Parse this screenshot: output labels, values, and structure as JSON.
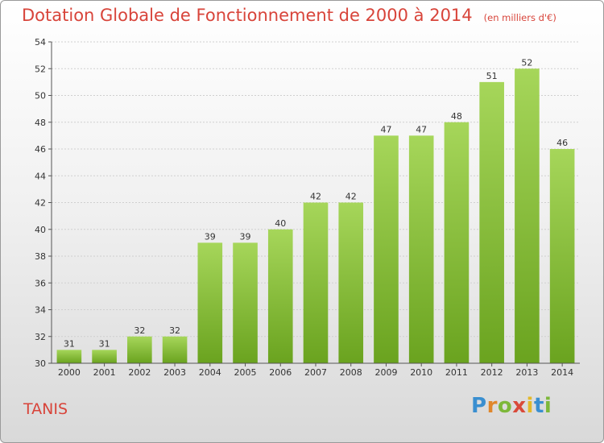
{
  "title": "Dotation Globale de Fonctionnement de 2000 à 2014",
  "unit_note": "(en milliers d'€)",
  "commune": "TANIS",
  "logo": {
    "letters": [
      "P",
      "r",
      "o",
      "x",
      "i",
      "t",
      "i"
    ],
    "colors": [
      "#3a8fd0",
      "#e0872b",
      "#7db83a",
      "#d94a3a",
      "#e3b92a",
      "#3a8fd0",
      "#7db83a"
    ]
  },
  "colors": {
    "bar_light": "#a6d65a",
    "bar_dark": "#6aa31f",
    "title": "#d8443a"
  },
  "chart_data": {
    "type": "bar",
    "categories": [
      "2000",
      "2001",
      "2002",
      "2003",
      "2004",
      "2005",
      "2006",
      "2007",
      "2008",
      "2009",
      "2010",
      "2011",
      "2012",
      "2013",
      "2014"
    ],
    "values": [
      31,
      31,
      32,
      32,
      39,
      39,
      40,
      42,
      42,
      47,
      47,
      48,
      51,
      52,
      46
    ],
    "ylim": [
      30,
      54
    ],
    "yticks": [
      30,
      32,
      34,
      36,
      38,
      40,
      42,
      44,
      46,
      48,
      50,
      52,
      54
    ],
    "grid": true
  }
}
